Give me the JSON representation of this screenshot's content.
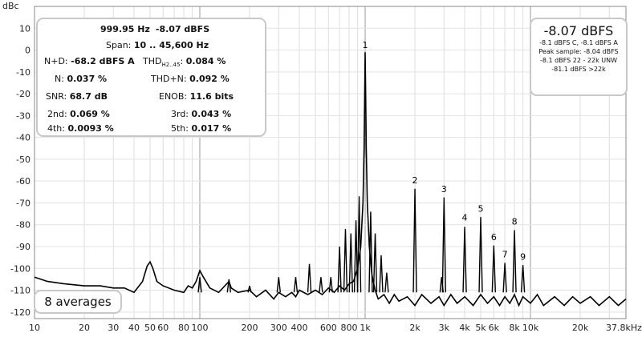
{
  "chart_data": {
    "type": "line",
    "ylabel": "dBc",
    "xunit_label": "37.8kHz",
    "xscale": "log",
    "xlim": [
      10,
      37800
    ],
    "ylim": [
      -123,
      20
    ],
    "yticks": [
      10,
      0,
      -10,
      -20,
      -30,
      -40,
      -50,
      -60,
      -70,
      -80,
      -90,
      -100,
      -110,
      -120
    ],
    "xticks": [
      {
        "v": 10,
        "label": "10"
      },
      {
        "v": 20,
        "label": "20"
      },
      {
        "v": 30,
        "label": "30"
      },
      {
        "v": 40,
        "label": "40"
      },
      {
        "v": 50,
        "label": "50"
      },
      {
        "v": 60,
        "label": "60"
      },
      {
        "v": 80,
        "label": "80"
      },
      {
        "v": 100,
        "label": "100"
      },
      {
        "v": 200,
        "label": "200"
      },
      {
        "v": 300,
        "label": "300"
      },
      {
        "v": 400,
        "label": "400"
      },
      {
        "v": 600,
        "label": "600"
      },
      {
        "v": 800,
        "label": "800"
      },
      {
        "v": 1000,
        "label": "1k"
      },
      {
        "v": 2000,
        "label": "2k"
      },
      {
        "v": 3000,
        "label": "3k"
      },
      {
        "v": 4000,
        "label": "4k"
      },
      {
        "v": 5000,
        "label": "5k"
      },
      {
        "v": 6000,
        "label": "6k"
      },
      {
        "v": 8000,
        "label": "8k"
      },
      {
        "v": 10000,
        "label": "10k"
      },
      {
        "v": 20000,
        "label": "20k"
      }
    ],
    "grid": true,
    "series": [
      {
        "points": [
          [
            10,
            -104
          ],
          [
            12,
            -106
          ],
          [
            15,
            -107
          ],
          [
            20,
            -108
          ],
          [
            25,
            -108
          ],
          [
            30,
            -109
          ],
          [
            35,
            -109
          ],
          [
            40,
            -111
          ],
          [
            45,
            -106
          ],
          [
            48,
            -99
          ],
          [
            50,
            -97
          ],
          [
            52,
            -100
          ],
          [
            55,
            -106
          ],
          [
            60,
            -108
          ],
          [
            70,
            -110
          ],
          [
            80,
            -111
          ],
          [
            85,
            -108
          ],
          [
            90,
            -109
          ],
          [
            95,
            -106
          ],
          [
            100,
            -101
          ],
          [
            105,
            -104
          ],
          [
            115,
            -109
          ],
          [
            130,
            -111
          ],
          [
            150,
            -106
          ],
          [
            155,
            -109
          ],
          [
            170,
            -111
          ],
          [
            200,
            -110
          ],
          [
            220,
            -113
          ],
          [
            250,
            -110
          ],
          [
            280,
            -114
          ],
          [
            300,
            -111
          ],
          [
            330,
            -113
          ],
          [
            360,
            -111
          ],
          [
            380,
            -113
          ],
          [
            400,
            -110
          ],
          [
            450,
            -112
          ],
          [
            500,
            -110
          ],
          [
            550,
            -112
          ],
          [
            600,
            -109
          ],
          [
            650,
            -111
          ],
          [
            700,
            -108
          ],
          [
            750,
            -110
          ],
          [
            800,
            -107
          ],
          [
            850,
            -106
          ],
          [
            900,
            -100
          ],
          [
            940,
            -90
          ],
          [
            970,
            -70
          ],
          [
            985,
            -45
          ],
          [
            995,
            -15
          ],
          [
            999.95,
            -1
          ],
          [
            1005,
            -15
          ],
          [
            1015,
            -45
          ],
          [
            1030,
            -70
          ],
          [
            1060,
            -90
          ],
          [
            1100,
            -103
          ],
          [
            1150,
            -110
          ],
          [
            1200,
            -114
          ],
          [
            1300,
            -112
          ],
          [
            1400,
            -116
          ],
          [
            1500,
            -112
          ],
          [
            1600,
            -115
          ],
          [
            1800,
            -113
          ],
          [
            2000,
            -117
          ],
          [
            2200,
            -112
          ],
          [
            2500,
            -116
          ],
          [
            2800,
            -113
          ],
          [
            3000,
            -117
          ],
          [
            3300,
            -112
          ],
          [
            3600,
            -116
          ],
          [
            4000,
            -113
          ],
          [
            4500,
            -117
          ],
          [
            5000,
            -112
          ],
          [
            5500,
            -116
          ],
          [
            6000,
            -113
          ],
          [
            6500,
            -117
          ],
          [
            7000,
            -113
          ],
          [
            7500,
            -116
          ],
          [
            8000,
            -112
          ],
          [
            8500,
            -117
          ],
          [
            9000,
            -113
          ],
          [
            10000,
            -116
          ],
          [
            11000,
            -112
          ],
          [
            12000,
            -117
          ],
          [
            14000,
            -113
          ],
          [
            16000,
            -117
          ],
          [
            18000,
            -113
          ],
          [
            20000,
            -116
          ],
          [
            23000,
            -113
          ],
          [
            26000,
            -117
          ],
          [
            30000,
            -113
          ],
          [
            34000,
            -117
          ],
          [
            37800,
            -114
          ]
        ],
        "spikes": [
          [
            100,
            -104
          ],
          [
            150,
            -105
          ],
          [
            200,
            -108
          ],
          [
            300,
            -104
          ],
          [
            380,
            -104
          ],
          [
            460,
            -98
          ],
          [
            540,
            -104
          ],
          [
            620,
            -104
          ],
          [
            700,
            -90
          ],
          [
            760,
            -82
          ],
          [
            820,
            -84
          ],
          [
            880,
            -78
          ],
          [
            920,
            -67
          ],
          [
            1080,
            -74
          ],
          [
            1150,
            -84
          ],
          [
            1250,
            -94
          ],
          [
            1350,
            -102
          ],
          [
            2000,
            -63.5
          ],
          [
            3000,
            -67.5
          ],
          [
            2900,
            -104
          ],
          [
            4000,
            -81
          ],
          [
            5000,
            -76.5
          ],
          [
            6000,
            -89.5
          ],
          [
            7000,
            -97.5
          ],
          [
            8000,
            -82.5
          ],
          [
            9000,
            -98.5
          ]
        ]
      }
    ],
    "annotations": [
      {
        "x": 999.95,
        "y": 1,
        "label": "1"
      },
      {
        "x": 2000,
        "y": -61,
        "label": "2"
      },
      {
        "x": 3000,
        "y": -65,
        "label": "3"
      },
      {
        "x": 4000,
        "y": -78,
        "label": "4"
      },
      {
        "x": 5000,
        "y": -74,
        "label": "5"
      },
      {
        "x": 6000,
        "y": -87,
        "label": "6"
      },
      {
        "x": 7000,
        "y": -95,
        "label": "7"
      },
      {
        "x": 8000,
        "y": -80,
        "label": "8"
      },
      {
        "x": 9000,
        "y": -96,
        "label": "9"
      }
    ]
  },
  "stats": {
    "frequency": "999.95 Hz",
    "level": "-8.07 dBFS",
    "span_label": "Span:",
    "span_value": "10 .. 45,600 Hz",
    "nd_label": "N+D:",
    "nd_value": "-68.2 dBFS A",
    "thd_label": "THD",
    "thd_sub": "H2..45",
    "thd_value": "0.084 %",
    "n_label": "N:",
    "n_value": "0.037 %",
    "thdn_label": "THD+N:",
    "thdn_value": "0.092 %",
    "snr_label": "SNR:",
    "snr_value": "68.7 dB",
    "enob_label": "ENOB:",
    "enob_value": "11.6 bits",
    "h2_label": "2nd:",
    "h2_value": "0.069 %",
    "h3_label": "3rd:",
    "h3_value": "0.043 %",
    "h4_label": "4th:",
    "h4_value": "0.0093 %",
    "h5_label": "5th:",
    "h5_value": "0.017 %"
  },
  "level_box": {
    "main": "-8.07 dBFS",
    "line1": "-8.1 dBFS C, -8.1 dBFS A",
    "line2": "Peak sample: -8.04 dBFS",
    "line3": "-8.1 dBFS 22 - 22k UNW",
    "line4": "-81.1 dBFS >22k"
  },
  "averages_label": "8 averages"
}
